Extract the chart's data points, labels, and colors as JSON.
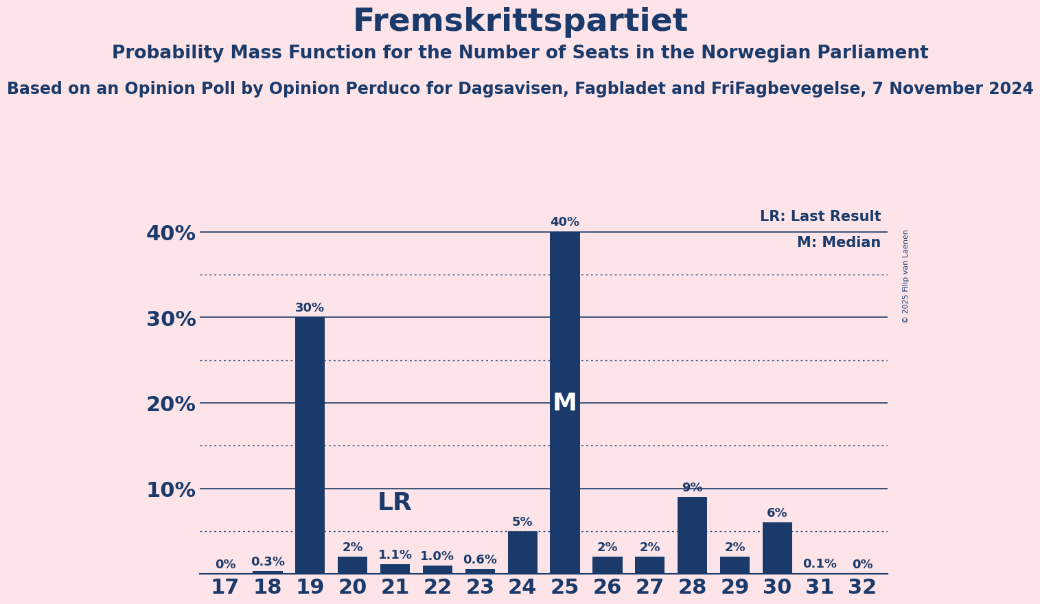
{
  "title": "Fremskrittspartiet",
  "subtitle1": "Probability Mass Function for the Number of Seats in the Norwegian Parliament",
  "subtitle2": "Based on an Opinion Poll by Opinion Perduco for Dagsavisen, Fagbladet and FriFagbevegelse, 7 November 2024",
  "copyright": "© 2025 Filip van Laenen",
  "seats": [
    17,
    18,
    19,
    20,
    21,
    22,
    23,
    24,
    25,
    26,
    27,
    28,
    29,
    30,
    31,
    32
  ],
  "probabilities": [
    0.0,
    0.3,
    30.0,
    2.0,
    1.1,
    1.0,
    0.6,
    5.0,
    40.0,
    2.0,
    2.0,
    9.0,
    2.0,
    6.0,
    0.1,
    0.0
  ],
  "labels": [
    "0%",
    "0.3%",
    "30%",
    "2%",
    "1.1%",
    "1.0%",
    "0.6%",
    "5%",
    "40%",
    "2%",
    "2%",
    "9%",
    "2%",
    "6%",
    "0.1%",
    "0%"
  ],
  "bar_color": "#1a3a6b",
  "background_color": "#fce4e8",
  "text_color": "#1a3a6b",
  "lr_seat": 21,
  "median_seat": 25,
  "ylim": [
    0,
    43
  ],
  "yticks": [
    0,
    10,
    20,
    30,
    40
  ],
  "ytick_labels": [
    "",
    "10%",
    "20%",
    "30%",
    "40%"
  ],
  "dotted_lines": [
    5,
    15,
    25,
    35
  ],
  "solid_lines": [
    10,
    20,
    30,
    40
  ],
  "title_fontsize": 34,
  "subtitle1_fontsize": 19,
  "subtitle2_fontsize": 17,
  "label_fontsize": 13,
  "tick_fontsize": 22,
  "lr_label": "LR",
  "median_label": "M",
  "lr_legend": "LR: Last Result",
  "median_legend": "M: Median",
  "legend_fontsize": 15,
  "annotation_fontsize": 26
}
